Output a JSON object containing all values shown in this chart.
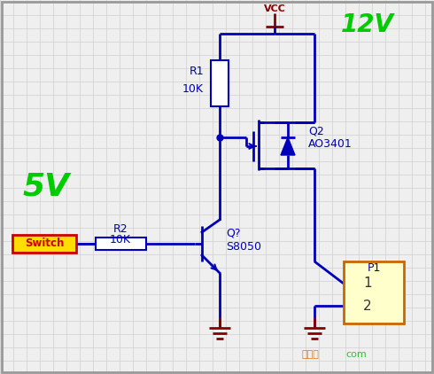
{
  "bg_color": "#efefef",
  "grid_color": "#d0d0d0",
  "wire_color": "#0000bb",
  "gnd_color": "#880000",
  "vcc_color": "#880000",
  "label_color": "#0000bb",
  "green_color": "#00cc00",
  "switch_bg": "#ffdd00",
  "switch_border": "#cc0000",
  "p1_bg": "#ffffcc",
  "p1_border": "#cc6600",
  "vcc_label": "VCC",
  "v12_label": "12V",
  "v5_label": "5V",
  "r1_label1": "R1",
  "r1_label2": "10K",
  "r2_label1": "R2",
  "r2_label2": "10K",
  "q2_label1": "Q2",
  "q2_label2": "AO3401",
  "q1_label1": "Q?",
  "q1_label2": "S8050",
  "p1_label": "P1",
  "switch_label": "Switch",
  "watermark1": "接线图",
  "watermark2": "com"
}
